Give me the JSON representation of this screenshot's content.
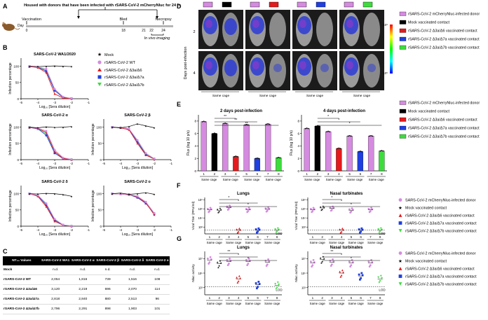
{
  "panel_labels": {
    "A": "A",
    "B": "B",
    "C": "C",
    "D": "D",
    "E": "E",
    "F": "F",
    "G": "G"
  },
  "colors": {
    "mock": "#000000",
    "wt": "#d58be0",
    "d3a6": "#e41a1c",
    "d3a7a": "#1f3fe0",
    "d3a7b": "#3ddc3d"
  },
  "panelA": {
    "title": "Housed with donors that have been infected with rSARS-CoV-2 mCherryNluc for 24 h",
    "day_label": "Day",
    "vaccination_label": "Vaccination",
    "bled_label": "Bled",
    "necropsy_label": "Necropsy",
    "in_vivo_label": "In vivo imaging",
    "ticks": [
      "0",
      "18",
      "21",
      "22",
      "24"
    ]
  },
  "legend": {
    "mock": "Mock",
    "wt": "rSARS-CoV-2 WT",
    "d3a6": "rSARS-CoV-2 Δ3a/Δ6",
    "d3a7a": "rSARS-CoV-2 Δ3a/Δ7a",
    "d3a7b": "rSARS-CoV-2 Δ3a/Δ7b"
  },
  "neut_axes": {
    "ylabel": "Infection percentage",
    "xlabel": "Log₁₀ [Sera dilution]",
    "yticks": [
      "0",
      "50",
      "100"
    ],
    "xticks": [
      "-5",
      "-4",
      "-3",
      "-2",
      "-1"
    ]
  },
  "chart_data": [
    {
      "type": "line",
      "title": "SARS-CoV-2 WA1/2020",
      "x": [
        -4.5,
        -4,
        -3.5,
        -3,
        -2.5,
        -2
      ],
      "series": [
        {
          "name": "Mock",
          "values": [
            100,
            99,
            100,
            101,
            100,
            99
          ]
        },
        {
          "name": "rSARS-CoV-2 WT",
          "values": [
            100,
            98,
            92,
            30,
            6,
            1
          ]
        },
        {
          "name": "rSARS-CoV-2 Δ3a/Δ6",
          "values": [
            99,
            96,
            80,
            15,
            2,
            0
          ]
        },
        {
          "name": "rSARS-CoV-2 Δ3a/Δ7a",
          "values": [
            99,
            97,
            85,
            25,
            4,
            1
          ]
        },
        {
          "name": "rSARS-CoV-2 Δ3a/Δ7b",
          "values": [
            100,
            97,
            88,
            28,
            5,
            1
          ]
        }
      ]
    },
    {
      "type": "line",
      "title": "SARS-CoV-2 α",
      "x": [
        -4.5,
        -4,
        -3.5,
        -3,
        -2.5,
        -2
      ],
      "series": [
        {
          "name": "Mock",
          "values": [
            100,
            98,
            101,
            99,
            100,
            102
          ]
        },
        {
          "name": "rSARS-CoV-2 WT",
          "values": [
            100,
            97,
            88,
            30,
            6,
            1
          ]
        },
        {
          "name": "rSARS-CoV-2 Δ3a/Δ6",
          "values": [
            99,
            96,
            84,
            25,
            4,
            0
          ]
        },
        {
          "name": "rSARS-CoV-2 Δ3a/Δ7a",
          "values": [
            99,
            95,
            75,
            20,
            3,
            0
          ]
        },
        {
          "name": "rSARS-CoV-2 Δ3a/Δ7b",
          "values": [
            100,
            96,
            80,
            24,
            4,
            1
          ]
        }
      ]
    },
    {
      "type": "line",
      "title": "SARS-CoV-2 β",
      "x": [
        -4.5,
        -4,
        -3.5,
        -3,
        -2.5,
        -2
      ],
      "series": [
        {
          "name": "Mock",
          "values": [
            100,
            98,
            102,
            110,
            104,
            98
          ]
        },
        {
          "name": "rSARS-CoV-2 WT",
          "values": [
            100,
            99,
            95,
            60,
            20,
            3
          ]
        },
        {
          "name": "rSARS-CoV-2 Δ3a/Δ6",
          "values": [
            100,
            98,
            92,
            50,
            14,
            2
          ]
        },
        {
          "name": "rSARS-CoV-2 Δ3a/Δ7a",
          "values": [
            100,
            98,
            93,
            55,
            15,
            2
          ]
        },
        {
          "name": "rSARS-CoV-2 Δ3a/Δ7b",
          "values": [
            100,
            99,
            94,
            58,
            18,
            3
          ]
        }
      ]
    },
    {
      "type": "line",
      "title": "SARS-CoV-2 δ",
      "x": [
        -4.5,
        -4,
        -3.5,
        -3,
        -2.5,
        -2
      ],
      "series": [
        {
          "name": "Mock",
          "values": [
            100,
            99,
            101,
            100,
            97,
            92
          ]
        },
        {
          "name": "rSARS-CoV-2 WT",
          "values": [
            100,
            95,
            70,
            22,
            4,
            1
          ]
        },
        {
          "name": "rSARS-CoV-2 Δ3a/Δ6",
          "values": [
            100,
            92,
            60,
            15,
            3,
            0
          ]
        },
        {
          "name": "rSARS-CoV-2 Δ3a/Δ7a",
          "values": [
            100,
            94,
            65,
            18,
            3,
            0
          ]
        },
        {
          "name": "rSARS-CoV-2 Δ3a/Δ7b",
          "values": [
            100,
            95,
            68,
            20,
            4,
            1
          ]
        }
      ]
    },
    {
      "type": "line",
      "title": "SARS-CoV-2 ο",
      "x": [
        -4.5,
        -4,
        -3.5,
        -3,
        -2.5,
        -2
      ],
      "series": [
        {
          "name": "Mock",
          "values": [
            100,
            102,
            98,
            100,
            103,
            98
          ]
        },
        {
          "name": "rSARS-CoV-2 WT",
          "values": [
            100,
            99,
            98,
            92,
            75,
            40
          ]
        },
        {
          "name": "rSARS-CoV-2 Δ3a/Δ6",
          "values": [
            100,
            99,
            97,
            90,
            72,
            35
          ]
        },
        {
          "name": "rSARS-CoV-2 Δ3a/Δ7a",
          "values": [
            100,
            99,
            97,
            88,
            70,
            38
          ]
        },
        {
          "name": "rSARS-CoV-2 Δ3a/Δ7b",
          "values": [
            100,
            99,
            98,
            91,
            74,
            40
          ]
        }
      ]
    },
    {
      "type": "bar",
      "title": "2 days post-infection",
      "ylabel": "Flux (log 10 p/s)",
      "yticks": [
        "0",
        "2",
        "4",
        "6",
        "8"
      ],
      "ylim": [
        0,
        9
      ],
      "categories": [
        "1",
        "2",
        "3",
        "4",
        "5",
        "6",
        "7",
        "8"
      ],
      "values": [
        7.9,
        6.0,
        7.6,
        2.3,
        7.4,
        2.0,
        7.5,
        2.1
      ],
      "xgroups": [
        "Same cage",
        "Same cage",
        "Same cage",
        "Same cage"
      ]
    },
    {
      "type": "bar",
      "title": "4 days post-infection",
      "ylabel": "Flux (log 10 p/s)",
      "yticks": [
        "0",
        "2",
        "4",
        "6",
        "8"
      ],
      "ylim": [
        0,
        9
      ],
      "categories": [
        "1",
        "2",
        "3",
        "4",
        "5",
        "6",
        "7",
        "8"
      ],
      "values": [
        6.8,
        7.2,
        6.3,
        3.6,
        5.6,
        3.1,
        5.6,
        3.2
      ],
      "xgroups": [
        "Same cage",
        "Same cage",
        "Same cage",
        "Same cage"
      ]
    },
    {
      "type": "scatter",
      "title": "Lungs",
      "ylabel": "Viral Titer (PFU/ml)",
      "yticks": [
        "10⁸",
        "10⁶",
        "10⁴",
        "10²"
      ],
      "lod": "LOD",
      "categories": [
        "1",
        "2",
        "3",
        "4",
        "5",
        "6",
        "7",
        "8"
      ],
      "values": [
        5.8,
        5.7,
        6.3,
        1.3,
        5.8,
        1.3,
        5.9,
        1.3
      ],
      "xgroups": [
        "Same cage",
        "Same cage",
        "Same cage",
        "Same cage"
      ]
    },
    {
      "type": "scatter",
      "title": "Nasal turbinates",
      "ylabel": "Viral Titer (PFU/ml)",
      "yticks": [
        "10⁸",
        "10⁶",
        "10⁴",
        "10²"
      ],
      "lod": "LOD",
      "categories": [
        "1",
        "2",
        "3",
        "4",
        "5",
        "6",
        "7",
        "8"
      ],
      "values": [
        5.8,
        6.2,
        6.1,
        1.3,
        5.7,
        1.3,
        5.8,
        1.3
      ],
      "xgroups": [
        "Same cage",
        "Same cage",
        "Same cage",
        "Same cage"
      ]
    },
    {
      "type": "scatter",
      "title": "Lungs",
      "ylabel": "Nluc activity",
      "yticks": [
        "10⁷",
        "10⁵",
        "10³"
      ],
      "lod": "LOD",
      "categories": [
        "1",
        "2",
        "3",
        "4",
        "5",
        "6",
        "7",
        "8"
      ],
      "values": [
        6.8,
        6.3,
        6.6,
        4.2,
        6.6,
        3.4,
        6.5,
        3.3
      ],
      "xgroups": [
        "Same cage",
        "Same cage",
        "Same cage",
        "Same cage"
      ]
    },
    {
      "type": "scatter",
      "title": "Nasal turbinates",
      "ylabel": "Nluc activity",
      "yticks": [
        "10⁷",
        "10⁵",
        "10³"
      ],
      "lod": "LOD",
      "categories": [
        "1",
        "2",
        "3",
        "4",
        "5",
        "6",
        "7",
        "8"
      ],
      "values": [
        6.4,
        6.9,
        6.5,
        5.0,
        6.4,
        4.6,
        6.4,
        4.2
      ],
      "xgroups": [
        "Same cage",
        "Same cage",
        "Same cage",
        "Same cage"
      ]
    }
  ],
  "panelC": {
    "header": [
      "NT₅₀ Values",
      "SARS-CoV-2 WA1",
      "SARS-CoV-2 α",
      "SARS-CoV-2 β",
      "SARS-CoV-2 δ",
      "SARS-CoV-2 ο"
    ],
    "rows": [
      [
        "Mock",
        "n.d.",
        "n.d.",
        "n.d.",
        "n.d.",
        "n.d."
      ],
      [
        "rSARS-CoV-2 WT",
        "2,054",
        "1,816",
        "739",
        "1,516",
        "108"
      ],
      [
        "rSARS-CoV-2 Δ3a/Δ6",
        "3,120",
        "2,219",
        "696",
        "2,070",
        "114"
      ],
      [
        "rSARS-CoV-2 Δ3a/Δ7a",
        "2,818",
        "2,840",
        "880",
        "2,513",
        "96"
      ],
      [
        "rSARS-CoV-2 Δ3a/Δ7b",
        "2,796",
        "2,291",
        "898",
        "1,903",
        "101"
      ]
    ]
  },
  "panelD": {
    "ylabel": "Days post-infection",
    "rows": [
      "2",
      "4"
    ],
    "same_cage": "Same cage",
    "scale_top": "10⁹",
    "scale_bottom": "10⁵"
  },
  "legend_D": [
    "rSARS-CoV-2 mCherryNluc-infected donor",
    "Mock vaccinated contact",
    "rSARS-CoV-2 Δ3a/Δ6 vaccinated contact",
    "rSARS-CoV-2 Δ3a/Δ7a vaccinated contact",
    "rSARS-CoV-2 Δ3a/Δ7b vaccinated contact"
  ],
  "legend_F": [
    "SARS-CoV-2 mCherryNluc-infected donor",
    "Mock vaccinated contact",
    "rSARS-CoV-2 Δ3a/Δ6 vaccinated contact",
    "rSARS-CoV-2 Δ3a/Δ7a vaccinated contact",
    "rSARS-CoV-2 Δ3a/Δ7b vaccinated contact"
  ],
  "sig": {
    "one": "*",
    "two": "**"
  }
}
